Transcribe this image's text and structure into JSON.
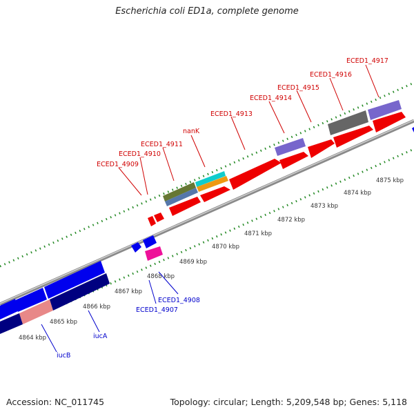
{
  "title": "Escherichia coli ED1a, complete genome",
  "footer": {
    "accession": "Accession: NC_011745",
    "summary": "Topology: circular; Length: 5,209,548 bp; Genes: 5,118"
  },
  "scale_labels": [
    "4864 kbp",
    "4865 kbp",
    "4866 kbp",
    "4867 kbp",
    "4868 kbp",
    "4869 kbp",
    "4870 kbp",
    "4871 kbp",
    "4872 kbp",
    "4873 kbp",
    "4874 kbp",
    "4875 kbp"
  ],
  "forward_gene_labels": [
    "ECED1_4909",
    "ECED1_4910",
    "ECED1_4911",
    "nanK",
    "ECED1_4913",
    "ECED1_4914",
    "ECED1_4915",
    "ECED1_4916",
    "ECED1_4917"
  ],
  "reverse_gene_labels": [
    "iucB",
    "iucA",
    "ECED1_4907",
    "ECED1_4908"
  ],
  "colors": {
    "forward_gene": "#ee0000",
    "reverse_gene": "#0000ee",
    "dark_reverse": "#000080",
    "pink_gene": "#e88888",
    "magenta_gene": "#ee1199",
    "purple_feature": "#7766cc",
    "gray_feature": "#666666",
    "olive_feature": "#667733",
    "steelblue_feature": "#5577aa",
    "cyan_feature": "#11cccc",
    "orange_feature": "#ee9911",
    "backbone": "#888888",
    "ticks": "#228822"
  }
}
